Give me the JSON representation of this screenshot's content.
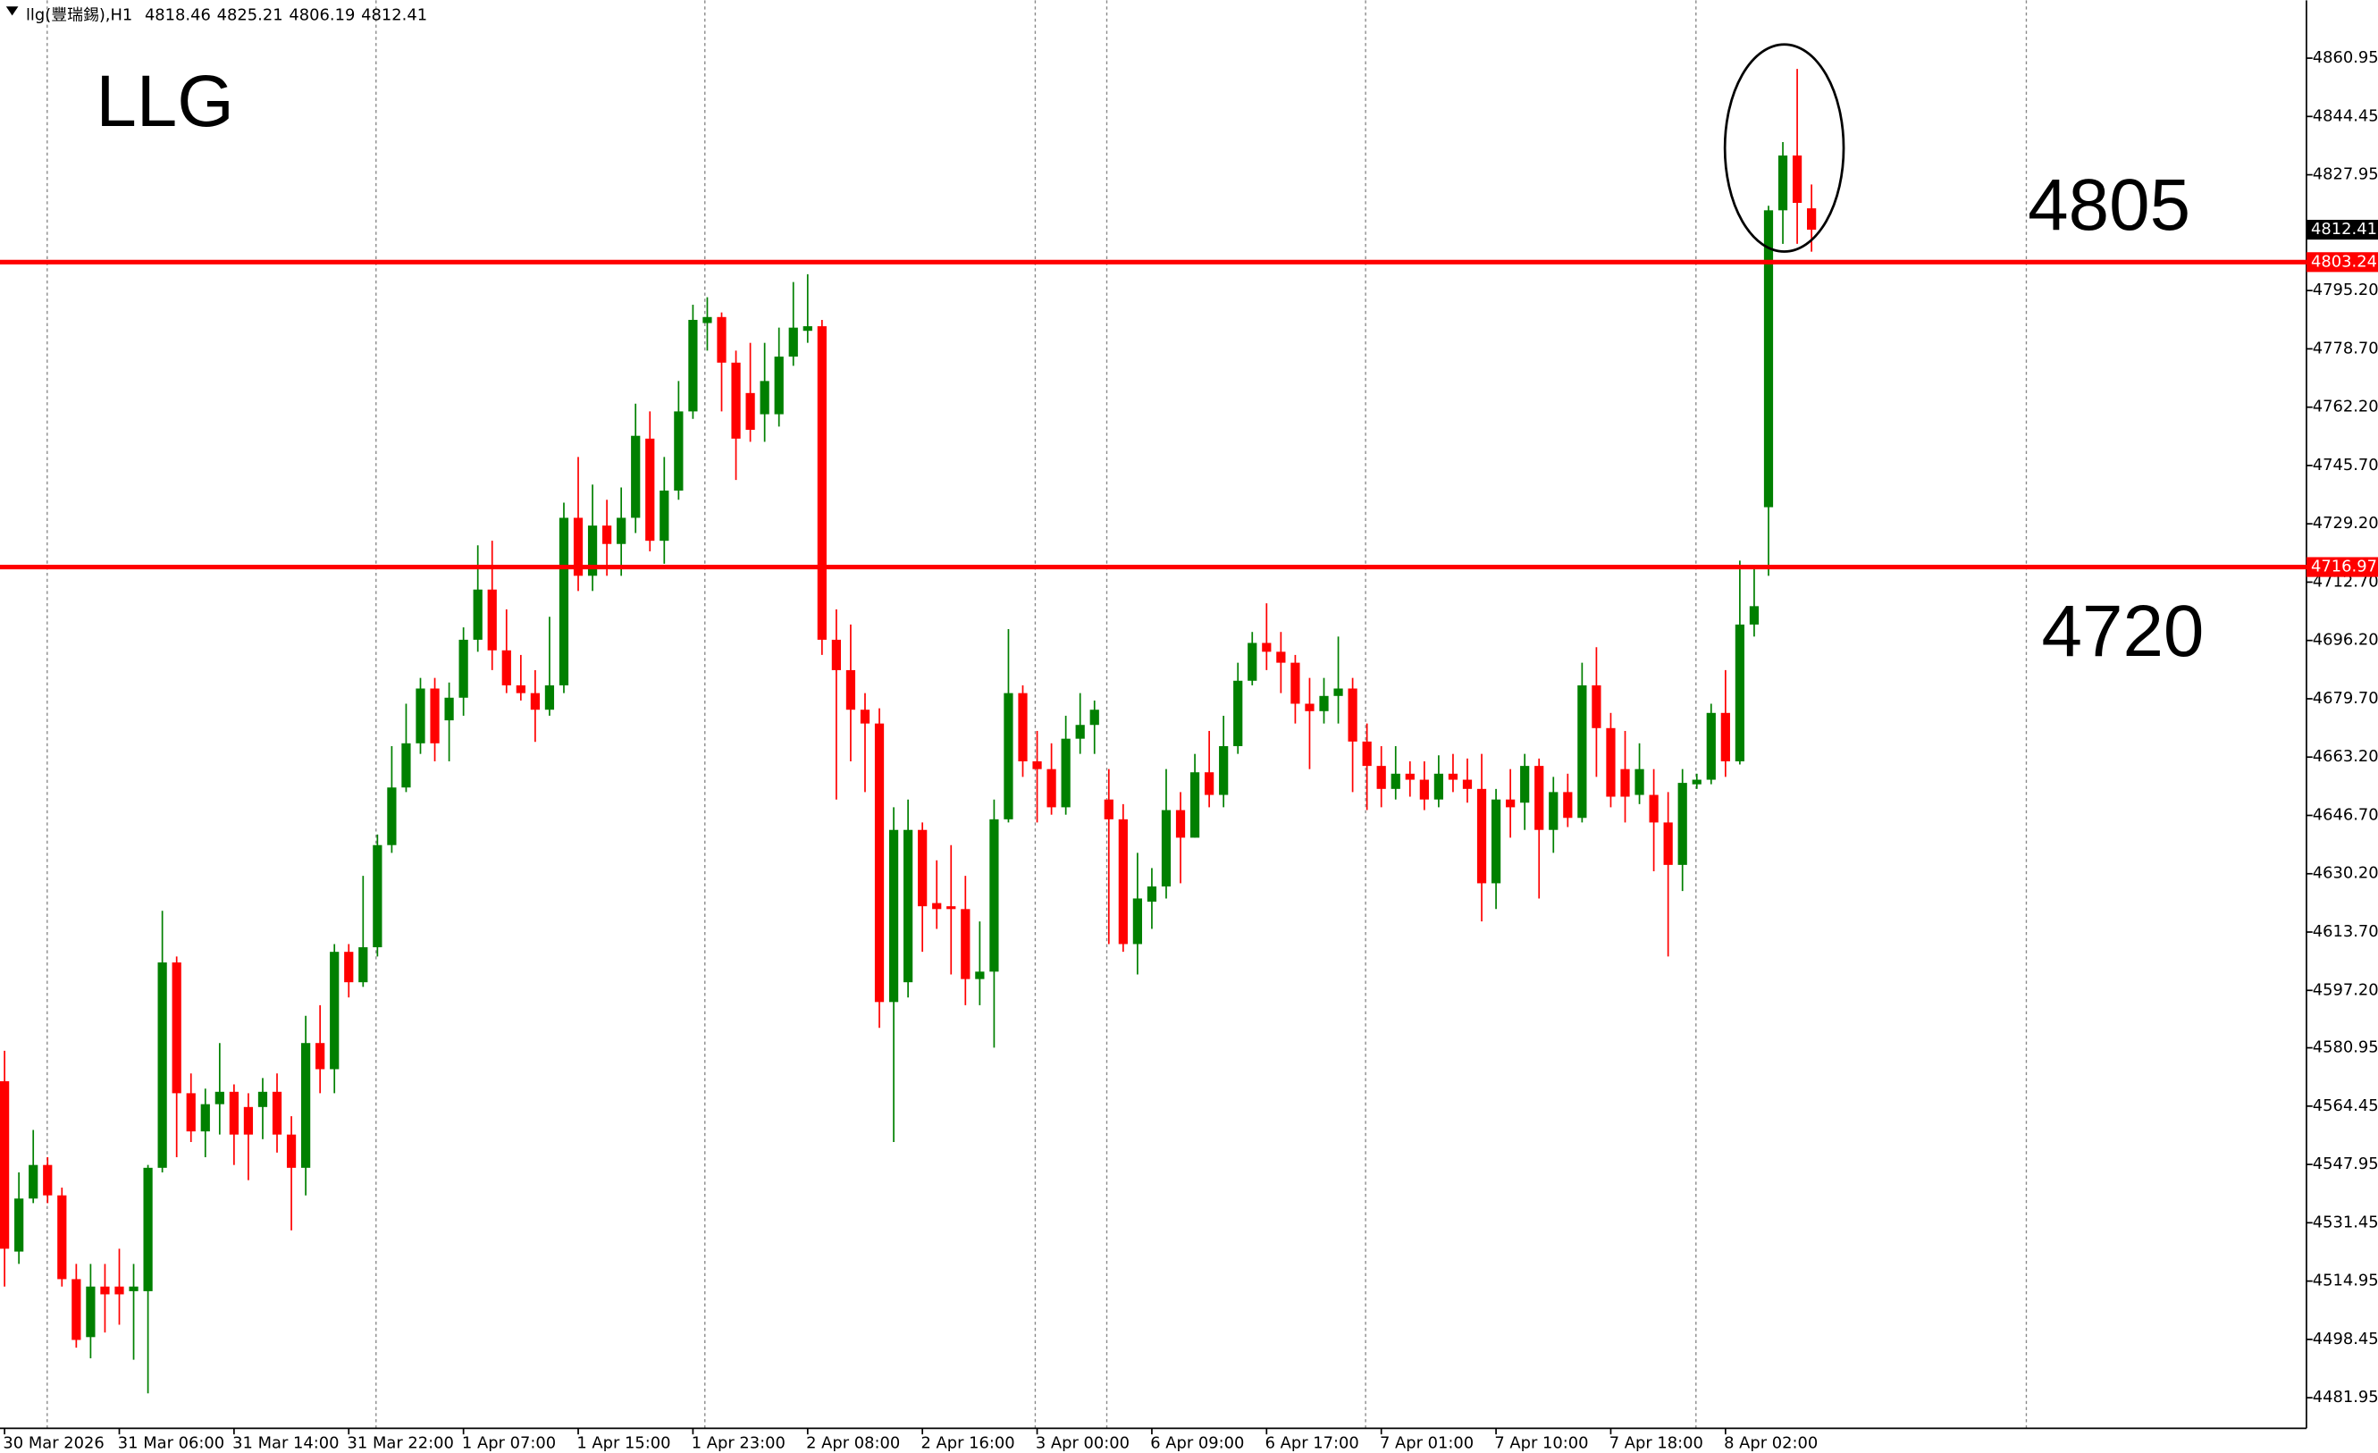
{
  "chart_data": {
    "type": "candlestick",
    "header": {
      "symbol": "llg(豐瑞錫),H1",
      "open": 4818.46,
      "high": 4825.21,
      "low": 4806.19,
      "close": 4812.41
    },
    "title": "LLG",
    "annotations": [
      "4805",
      "4720"
    ],
    "levels": [
      {
        "value": 4803.24,
        "color": "#ff0000"
      },
      {
        "value": 4716.97,
        "color": "#ff0000"
      }
    ],
    "current_price": 4812.41,
    "up_color": "#008000",
    "down_color": "#ff0000",
    "ylim": [
      4473.3,
      4877.3
    ],
    "yticks": [
      4860.95,
      4844.45,
      4827.95,
      {
        "value": 4795.2,
        "label": "4795.20"
      },
      {
        "value": 4778.7,
        "label": "4778.70"
      },
      {
        "value": 4762.2,
        "label": "4762.20"
      },
      {
        "value": 4745.7,
        "label": "4745.70"
      },
      {
        "value": 4729.2,
        "label": "4729.20"
      },
      {
        "value": 4712.7,
        "label": "4712.70"
      },
      {
        "value": 4696.2,
        "label": "4696.20"
      },
      {
        "value": 4679.7,
        "label": "4679.70"
      },
      {
        "value": 4663.2,
        "label": "4663.20"
      },
      {
        "value": 4646.7,
        "label": "4646.70"
      },
      {
        "value": 4630.2,
        "label": "4630.20"
      },
      {
        "value": 4613.7,
        "label": "4613.70"
      },
      {
        "value": 4597.2,
        "label": "4597.20"
      },
      4580.95,
      4564.45,
      4547.95,
      4531.45,
      4514.95,
      4498.45,
      4481.95
    ],
    "categories": [
      "30 Mar 2026",
      null,
      null,
      null,
      null,
      null,
      null,
      null,
      "31 Mar 06:00",
      null,
      null,
      null,
      null,
      null,
      null,
      null,
      "31 Mar 14:00",
      null,
      null,
      null,
      null,
      null,
      null,
      null,
      "31 Mar 22:00",
      null,
      null,
      null,
      null,
      null,
      null,
      null,
      "1 Apr 07:00",
      null,
      null,
      null,
      null,
      null,
      null,
      null,
      "1 Apr 15:00",
      null,
      null,
      null,
      null,
      null,
      null,
      null,
      "1 Apr 23:00",
      null,
      null,
      null,
      null,
      null,
      null,
      null,
      "2 Apr 08:00",
      null,
      null,
      null,
      null,
      null,
      null,
      null,
      "2 Apr 16:00",
      null,
      null,
      null,
      null,
      null,
      null,
      null,
      "3 Apr 00:00",
      null,
      null,
      null,
      null,
      null,
      null,
      null,
      "6 Apr 09:00",
      null,
      null,
      null,
      null,
      null,
      null,
      null,
      "6 Apr 17:00",
      null,
      null,
      null,
      null,
      null,
      null,
      null,
      "7 Apr 01:00",
      null,
      null,
      null,
      null,
      null,
      null,
      null,
      "7 Apr 10:00",
      null,
      null,
      null,
      null,
      null,
      null,
      null,
      "7 Apr 18:00",
      null,
      null,
      null,
      null,
      null,
      null,
      null,
      "8 Apr 02:00",
      null,
      null,
      null,
      null,
      null,
      null
    ],
    "open": [
      4571.5,
      4523.3,
      4538.3,
      4547.8,
      4539.2,
      4515.5,
      4499.1,
      4513.4,
      4513.4,
      4512.1,
      4512.1,
      4547.0,
      4605.1,
      4568.1,
      4557.3,
      4565.0,
      4568.5,
      4564.2,
      4564.2,
      4568.5,
      4556.4,
      4547.0,
      4582.3,
      4574.9,
      4608.1,
      4599.5,
      4609.4,
      4638.3,
      4654.6,
      4667.1,
      4682.6,
      4673.6,
      4680.0,
      4696.4,
      4710.6,
      4693.4,
      4683.5,
      4681.3,
      4676.6,
      4683.5,
      4730.9,
      4714.5,
      4728.7,
      4723.5,
      4730.9,
      4753.3,
      4724.4,
      4738.6,
      4761.0,
      4786.0,
      4787.7,
      4774.8,
      4766.2,
      4760.2,
      4760.2,
      4776.5,
      4783.8,
      4785.1,
      4696.4,
      4687.8,
      4676.6,
      4672.7,
      4593.9,
      4599.5,
      4642.6,
      4621.9,
      4621.0,
      4620.2,
      4600.4,
      4602.5,
      4645.6,
      4681.3,
      4662.0,
      4659.8,
      4649.0,
      4668.4,
      4672.3,
      4651.2,
      4645.6,
      4610.3,
      4622.3,
      4626.6,
      4648.2,
      4640.4,
      4658.9,
      4652.5,
      4666.3,
      4684.8,
      4695.5,
      4693.0,
      4689.9,
      4678.3,
      4676.2,
      4680.5,
      4682.6,
      4667.6,
      4660.7,
      4654.2,
      4658.5,
      4656.8,
      4651.2,
      4658.5,
      4656.8,
      4654.2,
      4627.5,
      4651.2,
      4650.3,
      4660.7,
      4642.6,
      4653.3,
      4646.0,
      4683.5,
      4671.4,
      4659.8,
      4652.5,
      4652.5,
      4644.7,
      4632.7,
      4655.5,
      4656.8,
      4675.7,
      4662.0,
      4700.7,
      4733.9,
      4817.9,
      4833.4,
      4818.46
    ],
    "high": [
      4580.1,
      4545.7,
      4557.7,
      4550.0,
      4541.4,
      4519.8,
      4519.8,
      4519.8,
      4524.1,
      4519.8,
      4547.8,
      4619.7,
      4606.8,
      4573.7,
      4569.4,
      4582.3,
      4570.6,
      4568.1,
      4572.4,
      4573.7,
      4561.6,
      4590.0,
      4593.0,
      4610.3,
      4610.3,
      4629.6,
      4641.3,
      4666.3,
      4678.3,
      4685.6,
      4685.6,
      4684.3,
      4699.9,
      4723.1,
      4724.4,
      4705.0,
      4692.1,
      4687.8,
      4702.9,
      4735.2,
      4748.1,
      4740.3,
      4736.0,
      4739.5,
      4763.2,
      4761.0,
      4748.1,
      4769.6,
      4791.2,
      4793.3,
      4789.0,
      4778.2,
      4780.4,
      4780.4,
      4784.7,
      4797.6,
      4799.8,
      4786.9,
      4705.0,
      4700.7,
      4681.3,
      4677.0,
      4649.0,
      4651.2,
      4644.7,
      4634.0,
      4638.3,
      4629.6,
      4616.7,
      4651.2,
      4699.4,
      4683.5,
      4670.6,
      4667.1,
      4674.9,
      4681.3,
      4679.2,
      4659.8,
      4649.9,
      4636.1,
      4631.8,
      4659.8,
      4653.3,
      4664.1,
      4670.6,
      4674.9,
      4689.9,
      4698.6,
      4706.7,
      4698.6,
      4692.1,
      4685.6,
      4685.6,
      4697.3,
      4685.6,
      4672.7,
      4666.3,
      4666.3,
      4662.0,
      4662.0,
      4663.7,
      4664.1,
      4662.8,
      4664.1,
      4654.2,
      4659.8,
      4664.1,
      4662.8,
      4657.6,
      4658.5,
      4689.9,
      4694.3,
      4675.7,
      4670.6,
      4667.1,
      4659.8,
      4653.3,
      4659.8,
      4658.5,
      4678.3,
      4687.8,
      4718.8,
      4717.1,
      4819.2,
      4837.2,
      4857.9,
      4825.21
    ],
    "low": [
      4513.4,
      4519.8,
      4537.0,
      4537.0,
      4513.4,
      4496.1,
      4493.1,
      4500.4,
      4502.6,
      4492.7,
      4483.2,
      4545.7,
      4550.0,
      4554.3,
      4550.0,
      4556.4,
      4547.8,
      4543.5,
      4555.1,
      4551.3,
      4529.3,
      4539.2,
      4568.1,
      4568.1,
      4595.2,
      4598.2,
      4606.8,
      4636.1,
      4653.3,
      4664.1,
      4662.0,
      4662.0,
      4674.9,
      4693.0,
      4687.8,
      4681.3,
      4679.2,
      4667.5,
      4674.9,
      4681.3,
      4710.2,
      4710.2,
      4714.5,
      4714.5,
      4726.6,
      4721.4,
      4717.9,
      4736.0,
      4758.9,
      4778.2,
      4761.0,
      4741.6,
      4752.4,
      4752.4,
      4756.7,
      4773.9,
      4780.4,
      4692.1,
      4651.2,
      4662.0,
      4653.3,
      4586.6,
      4554.3,
      4595.2,
      4608.1,
      4614.6,
      4601.7,
      4593.0,
      4593.0,
      4581.0,
      4644.7,
      4657.6,
      4644.7,
      4646.9,
      4646.9,
      4664.1,
      4664.1,
      4610.3,
      4608.1,
      4601.7,
      4614.6,
      4623.2,
      4627.5,
      4640.4,
      4649.0,
      4649.0,
      4664.1,
      4683.5,
      4687.8,
      4681.3,
      4672.7,
      4659.8,
      4672.7,
      4672.7,
      4653.3,
      4648.2,
      4649.0,
      4651.2,
      4652.0,
      4648.2,
      4649.0,
      4653.3,
      4650.3,
      4616.7,
      4620.2,
      4640.4,
      4642.6,
      4623.2,
      4636.1,
      4643.4,
      4644.7,
      4657.6,
      4649.0,
      4644.7,
      4649.9,
      4630.9,
      4606.8,
      4625.3,
      4654.2,
      4655.5,
      4657.6,
      4661.1,
      4697.3,
      4714.5,
      4808.4,
      4808.4,
      4806.19
    ],
    "close": [
      4524.1,
      4538.3,
      4547.8,
      4539.2,
      4515.5,
      4498.3,
      4513.4,
      4511.2,
      4511.2,
      4513.4,
      4547.0,
      4605.1,
      4568.1,
      4557.3,
      4565.0,
      4568.5,
      4556.4,
      4556.4,
      4568.5,
      4556.4,
      4547.0,
      4582.3,
      4574.9,
      4608.1,
      4599.5,
      4609.4,
      4638.3,
      4654.6,
      4667.1,
      4682.6,
      4667.1,
      4680.0,
      4696.4,
      4710.6,
      4693.4,
      4683.5,
      4681.3,
      4676.6,
      4683.5,
      4730.9,
      4714.5,
      4728.7,
      4723.5,
      4730.9,
      4754.1,
      4724.4,
      4738.6,
      4761.0,
      4786.9,
      4787.7,
      4774.8,
      4753.3,
      4755.8,
      4769.6,
      4776.5,
      4784.7,
      4785.1,
      4696.4,
      4687.8,
      4676.6,
      4672.7,
      4593.9,
      4642.6,
      4642.6,
      4621.0,
      4620.2,
      4620.2,
      4600.4,
      4602.5,
      4645.6,
      4681.3,
      4662.0,
      4659.8,
      4649.0,
      4668.4,
      4672.3,
      4676.6,
      4645.6,
      4610.3,
      4623.2,
      4626.6,
      4648.2,
      4640.4,
      4658.9,
      4652.5,
      4666.3,
      4684.8,
      4695.5,
      4693.0,
      4689.9,
      4678.3,
      4676.2,
      4680.5,
      4682.6,
      4667.6,
      4660.7,
      4654.2,
      4658.5,
      4656.8,
      4651.2,
      4658.5,
      4656.8,
      4654.2,
      4627.5,
      4651.2,
      4649.0,
      4660.7,
      4642.6,
      4653.3,
      4646.0,
      4683.5,
      4671.4,
      4652.0,
      4652.0,
      4659.8,
      4644.7,
      4632.7,
      4655.9,
      4656.8,
      4675.7,
      4662.0,
      4700.7,
      4705.9,
      4817.9,
      4833.4,
      4820.0,
      4812.41
    ]
  }
}
